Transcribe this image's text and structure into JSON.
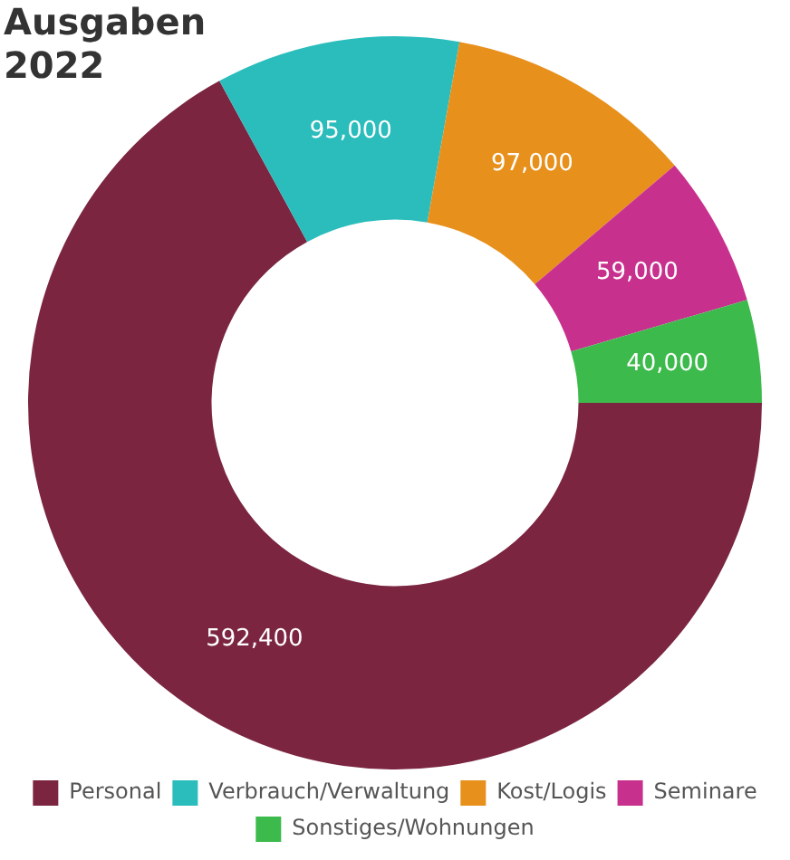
{
  "chart_data": {
    "type": "donut",
    "title": "Ausgaben 2022",
    "categories": [
      "Personal",
      "Verbrauch/Verwaltung",
      "Kost/Logis",
      "Seminare",
      "Sonstiges/Wohnungen"
    ],
    "values": [
      592400,
      95000,
      97000,
      59000,
      40000
    ],
    "colors": [
      "#7b2540",
      "#2bbcbc",
      "#e8901c",
      "#c8308e",
      "#3dba4c"
    ],
    "value_labels": [
      "592,400",
      "95,000",
      "97,000",
      "59,000",
      "40,000"
    ],
    "legend": "bottom"
  }
}
